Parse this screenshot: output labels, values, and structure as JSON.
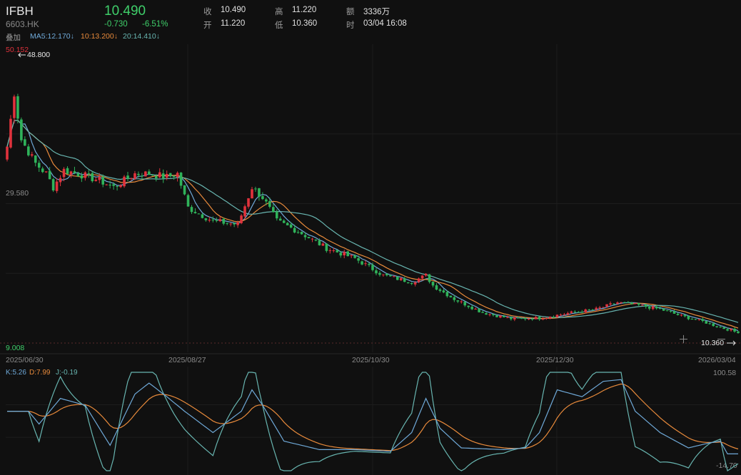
{
  "header": {
    "symbol": "IFBH",
    "code": "6603.HK",
    "overlay_label": "叠加",
    "last_price": "10.490",
    "change": "-0.730",
    "change_pct": "-6.51%",
    "close_label": "收",
    "close_value": "10.490",
    "open_label": "开",
    "open_value": "11.220",
    "high_label": "高",
    "high_value": "11.220",
    "low_label": "低",
    "low_value": "10.360",
    "amount_label": "额",
    "amount_value": "3336万",
    "time_label": "时",
    "time_value": "03/04 16:08"
  },
  "ma": {
    "ma5_label": "MA5:12.170↓",
    "ma10_label": "10:13.200↓",
    "ma20_label": "20:14.410↓"
  },
  "axes": {
    "y_top": "50.152",
    "y_mid": "29.580",
    "y_bottom": "9.008",
    "max_marker": "48.800",
    "min_marker": "10.360",
    "dates": [
      "2025/06/30",
      "2025/08/27",
      "2025/10/30",
      "2025/12/30",
      "2026/03/04"
    ]
  },
  "kdj": {
    "k_label": "K:5.26",
    "d_label": "D:7.99",
    "j_label": "J:-0.19",
    "top_value": "100.58",
    "bottom_value": "-14.70"
  },
  "colors": {
    "up": "#e0323c",
    "down": "#2fb35a",
    "ma5": "#6fa9d8",
    "ma10": "#e88a3b",
    "ma20": "#68b5b0"
  },
  "chart_data": {
    "type": "candlestick",
    "ylim": [
      9.008,
      50.152
    ],
    "date_labels": [
      "2025/06/30",
      "2025/08/27",
      "2025/10/30",
      "2025/12/30",
      "2026/03/04"
    ],
    "anchors_close": [
      [
        0,
        38.0
      ],
      [
        2,
        46.0
      ],
      [
        4,
        39.0
      ],
      [
        8,
        35.5
      ],
      [
        11,
        34.0
      ],
      [
        13,
        32.0
      ],
      [
        16,
        34.5
      ],
      [
        20,
        34.0
      ],
      [
        26,
        33.0
      ],
      [
        30,
        32.0
      ],
      [
        36,
        34.0
      ],
      [
        40,
        34.0
      ],
      [
        45,
        33.5
      ],
      [
        48,
        34.0
      ],
      [
        51,
        29.0
      ],
      [
        58,
        27.0
      ],
      [
        65,
        26.5
      ],
      [
        69,
        32.0
      ],
      [
        72,
        30.5
      ],
      [
        76,
        27.0
      ],
      [
        82,
        25.5
      ],
      [
        90,
        23.0
      ],
      [
        98,
        21.5
      ],
      [
        106,
        19.0
      ],
      [
        114,
        18.0
      ],
      [
        118,
        19.0
      ],
      [
        120,
        17.5
      ],
      [
        126,
        15.5
      ],
      [
        134,
        13.5
      ],
      [
        142,
        12.6
      ],
      [
        150,
        12.7
      ],
      [
        158,
        13.4
      ],
      [
        166,
        14.0
      ],
      [
        172,
        15.0
      ],
      [
        178,
        14.6
      ],
      [
        184,
        14.0
      ],
      [
        190,
        13.0
      ],
      [
        196,
        12.2
      ],
      [
        201,
        11.3
      ],
      [
        204,
        10.9
      ],
      [
        206,
        10.49
      ]
    ],
    "kdj_range": [
      -14.7,
      100.58
    ],
    "kdj_anchors_k": [
      [
        0,
        55
      ],
      [
        6,
        55
      ],
      [
        9,
        40
      ],
      [
        15,
        70
      ],
      [
        22,
        62
      ],
      [
        29,
        15
      ],
      [
        36,
        75
      ],
      [
        40,
        88
      ],
      [
        45,
        72
      ],
      [
        50,
        55
      ],
      [
        58,
        30
      ],
      [
        66,
        55
      ],
      [
        69,
        80
      ],
      [
        72,
        62
      ],
      [
        78,
        20
      ],
      [
        88,
        10
      ],
      [
        98,
        10
      ],
      [
        108,
        8
      ],
      [
        114,
        30
      ],
      [
        118,
        70
      ],
      [
        122,
        35
      ],
      [
        128,
        12
      ],
      [
        140,
        10
      ],
      [
        146,
        12
      ],
      [
        150,
        30
      ],
      [
        155,
        80
      ],
      [
        162,
        72
      ],
      [
        168,
        90
      ],
      [
        173,
        92
      ],
      [
        177,
        55
      ],
      [
        184,
        30
      ],
      [
        192,
        12
      ],
      [
        198,
        18
      ],
      [
        201,
        20
      ],
      [
        203,
        5
      ],
      [
        206,
        5
      ]
    ]
  }
}
